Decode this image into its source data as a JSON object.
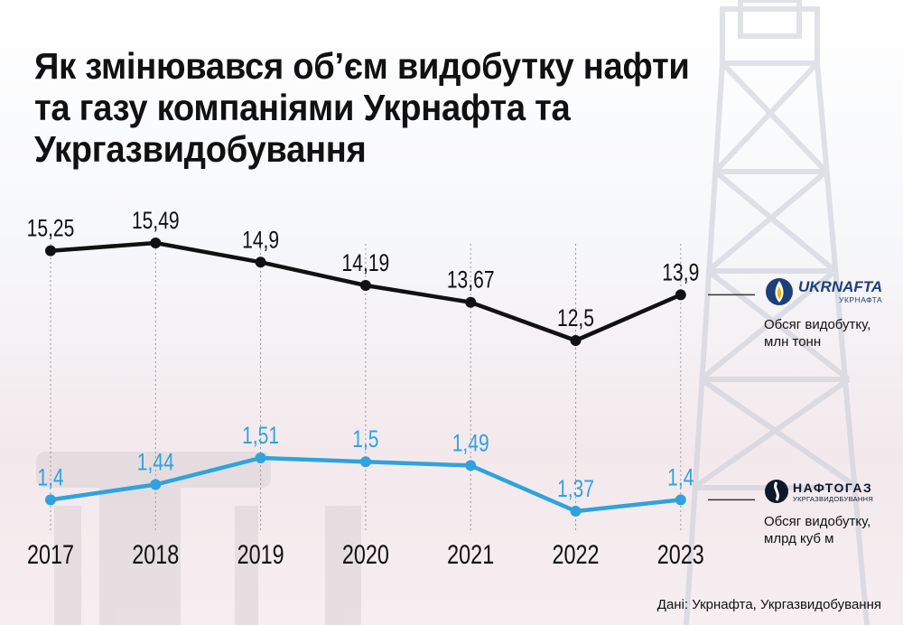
{
  "title": "Як змінювався об’єм видобутку нафти та газу компаніями Укрнафта та Укргазвидобування",
  "source": "Дані: Укрнафта, Укргазвидобування",
  "legend": {
    "oil": {
      "logo_main": "UKRNAFTA",
      "logo_sub": "УКРНАФТА",
      "label_line1": "Обсяг видобутку,",
      "label_line2": "млн тонн",
      "icon": "ukrnafta-logo-icon"
    },
    "gas": {
      "logo_main": "НАФТОГАЗ",
      "logo_sub": "УКРГАЗВИДОБУВАННЯ",
      "label_line1": "Обсяг видобутку,",
      "label_line2": "млрд куб м",
      "icon": "naftogaz-logo-icon"
    }
  },
  "colors": {
    "oil": "#111111",
    "gas": "#2ea3dd",
    "grid": "#9a9a9a"
  },
  "chart_data": {
    "type": "line",
    "x": [
      "2017",
      "2018",
      "2019",
      "2020",
      "2021",
      "2022",
      "2023"
    ],
    "series": [
      {
        "id": "oil",
        "values": [
          15.25,
          15.49,
          14.9,
          14.19,
          13.67,
          12.5,
          13.9
        ],
        "labels": [
          "15,25",
          "15,49",
          "14,9",
          "14,19",
          "13,67",
          "12,5",
          "13,9"
        ]
      },
      {
        "id": "gas",
        "values": [
          1.4,
          1.44,
          1.51,
          1.5,
          1.49,
          1.37,
          1.4
        ],
        "labels": [
          "1,4",
          "1,44",
          "1,51",
          "1,5",
          "1,49",
          "1,37",
          "1,4"
        ]
      }
    ],
    "grid_vertical": true
  }
}
